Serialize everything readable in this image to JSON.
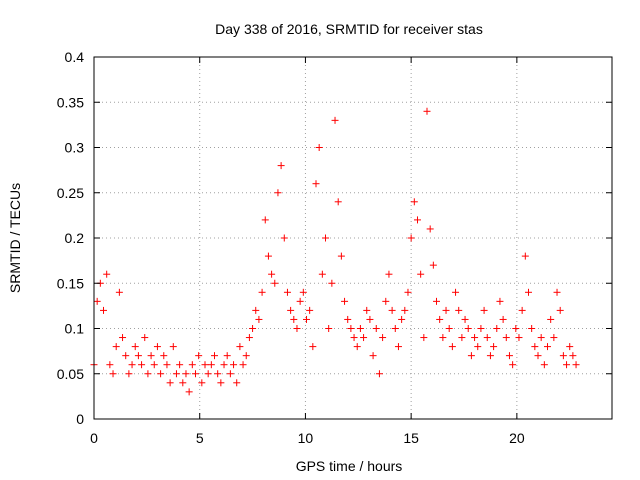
{
  "chart_data": {
    "type": "scatter",
    "title": "Day 338 of 2016, SRMTID for receiver stas",
    "xlabel": "GPS time / hours",
    "ylabel": "SRMTID / TECUs",
    "xlim": [
      0,
      24.5
    ],
    "ylim": [
      0,
      0.4
    ],
    "x_ticks": [
      0,
      5,
      10,
      15,
      20
    ],
    "x_tick_labels": [
      "0",
      "5",
      "10",
      "15",
      "20"
    ],
    "y_ticks": [
      0,
      0.05,
      0.1,
      0.15,
      0.2,
      0.25,
      0.3,
      0.35,
      0.4
    ],
    "y_tick_labels": [
      "0",
      "0.05",
      "0.1",
      "0.15",
      "0.2",
      "0.25",
      "0.3",
      "0.35",
      "0.4"
    ],
    "grid": true,
    "marker": "+",
    "color": "#ff0000",
    "series": [
      {
        "name": "SRMTID",
        "x": [
          0.0,
          0.15,
          0.3,
          0.45,
          0.6,
          0.75,
          0.9,
          1.05,
          1.2,
          1.35,
          1.5,
          1.65,
          1.8,
          1.95,
          2.1,
          2.25,
          2.4,
          2.55,
          2.7,
          2.85,
          3.0,
          3.15,
          3.3,
          3.45,
          3.6,
          3.75,
          3.9,
          4.05,
          4.2,
          4.35,
          4.5,
          4.65,
          4.8,
          4.95,
          5.1,
          5.25,
          5.4,
          5.55,
          5.7,
          5.85,
          6.0,
          6.15,
          6.3,
          6.45,
          6.6,
          6.75,
          6.9,
          7.05,
          7.2,
          7.35,
          7.5,
          7.65,
          7.8,
          7.95,
          8.1,
          8.25,
          8.4,
          8.55,
          8.7,
          8.85,
          9.0,
          9.15,
          9.3,
          9.45,
          9.6,
          9.75,
          9.9,
          10.05,
          10.2,
          10.35,
          10.5,
          10.65,
          10.8,
          10.95,
          11.1,
          11.25,
          11.4,
          11.55,
          11.7,
          11.85,
          12.0,
          12.15,
          12.3,
          12.45,
          12.6,
          12.75,
          12.9,
          13.05,
          13.2,
          13.35,
          13.5,
          13.65,
          13.8,
          13.95,
          14.1,
          14.25,
          14.4,
          14.55,
          14.7,
          14.85,
          15.0,
          15.15,
          15.3,
          15.45,
          15.6,
          15.75,
          15.9,
          16.05,
          16.2,
          16.35,
          16.5,
          16.65,
          16.8,
          16.95,
          17.1,
          17.25,
          17.4,
          17.55,
          17.7,
          17.85,
          18.0,
          18.15,
          18.3,
          18.45,
          18.6,
          18.75,
          18.9,
          19.05,
          19.2,
          19.35,
          19.5,
          19.65,
          19.8,
          19.95,
          20.1,
          20.25,
          20.4,
          20.55,
          20.7,
          20.85,
          21.0,
          21.15,
          21.3,
          21.45,
          21.6,
          21.75,
          21.9,
          22.05,
          22.2,
          22.35,
          22.5,
          22.65,
          22.8
        ],
        "y": [
          0.06,
          0.13,
          0.15,
          0.12,
          0.16,
          0.06,
          0.05,
          0.08,
          0.14,
          0.09,
          0.07,
          0.05,
          0.06,
          0.08,
          0.07,
          0.06,
          0.09,
          0.05,
          0.07,
          0.06,
          0.08,
          0.05,
          0.07,
          0.06,
          0.04,
          0.08,
          0.05,
          0.06,
          0.04,
          0.05,
          0.03,
          0.06,
          0.05,
          0.07,
          0.04,
          0.06,
          0.05,
          0.06,
          0.07,
          0.05,
          0.04,
          0.06,
          0.07,
          0.05,
          0.06,
          0.04,
          0.08,
          0.06,
          0.07,
          0.09,
          0.1,
          0.12,
          0.11,
          0.14,
          0.22,
          0.18,
          0.16,
          0.15,
          0.25,
          0.28,
          0.2,
          0.14,
          0.12,
          0.11,
          0.1,
          0.13,
          0.14,
          0.11,
          0.12,
          0.08,
          0.26,
          0.3,
          0.16,
          0.2,
          0.1,
          0.15,
          0.33,
          0.24,
          0.18,
          0.13,
          0.11,
          0.1,
          0.09,
          0.08,
          0.1,
          0.09,
          0.12,
          0.11,
          0.07,
          0.1,
          0.05,
          0.09,
          0.13,
          0.16,
          0.12,
          0.1,
          0.08,
          0.11,
          0.12,
          0.14,
          0.2,
          0.24,
          0.22,
          0.16,
          0.09,
          0.34,
          0.21,
          0.17,
          0.13,
          0.11,
          0.09,
          0.12,
          0.1,
          0.08,
          0.14,
          0.12,
          0.09,
          0.11,
          0.1,
          0.07,
          0.09,
          0.08,
          0.1,
          0.12,
          0.09,
          0.07,
          0.08,
          0.1,
          0.13,
          0.11,
          0.09,
          0.07,
          0.06,
          0.1,
          0.09,
          0.12,
          0.18,
          0.14,
          0.1,
          0.08,
          0.07,
          0.09,
          0.06,
          0.08,
          0.11,
          0.09,
          0.14,
          0.12,
          0.07,
          0.06,
          0.08,
          0.07,
          0.06
        ]
      }
    ]
  }
}
